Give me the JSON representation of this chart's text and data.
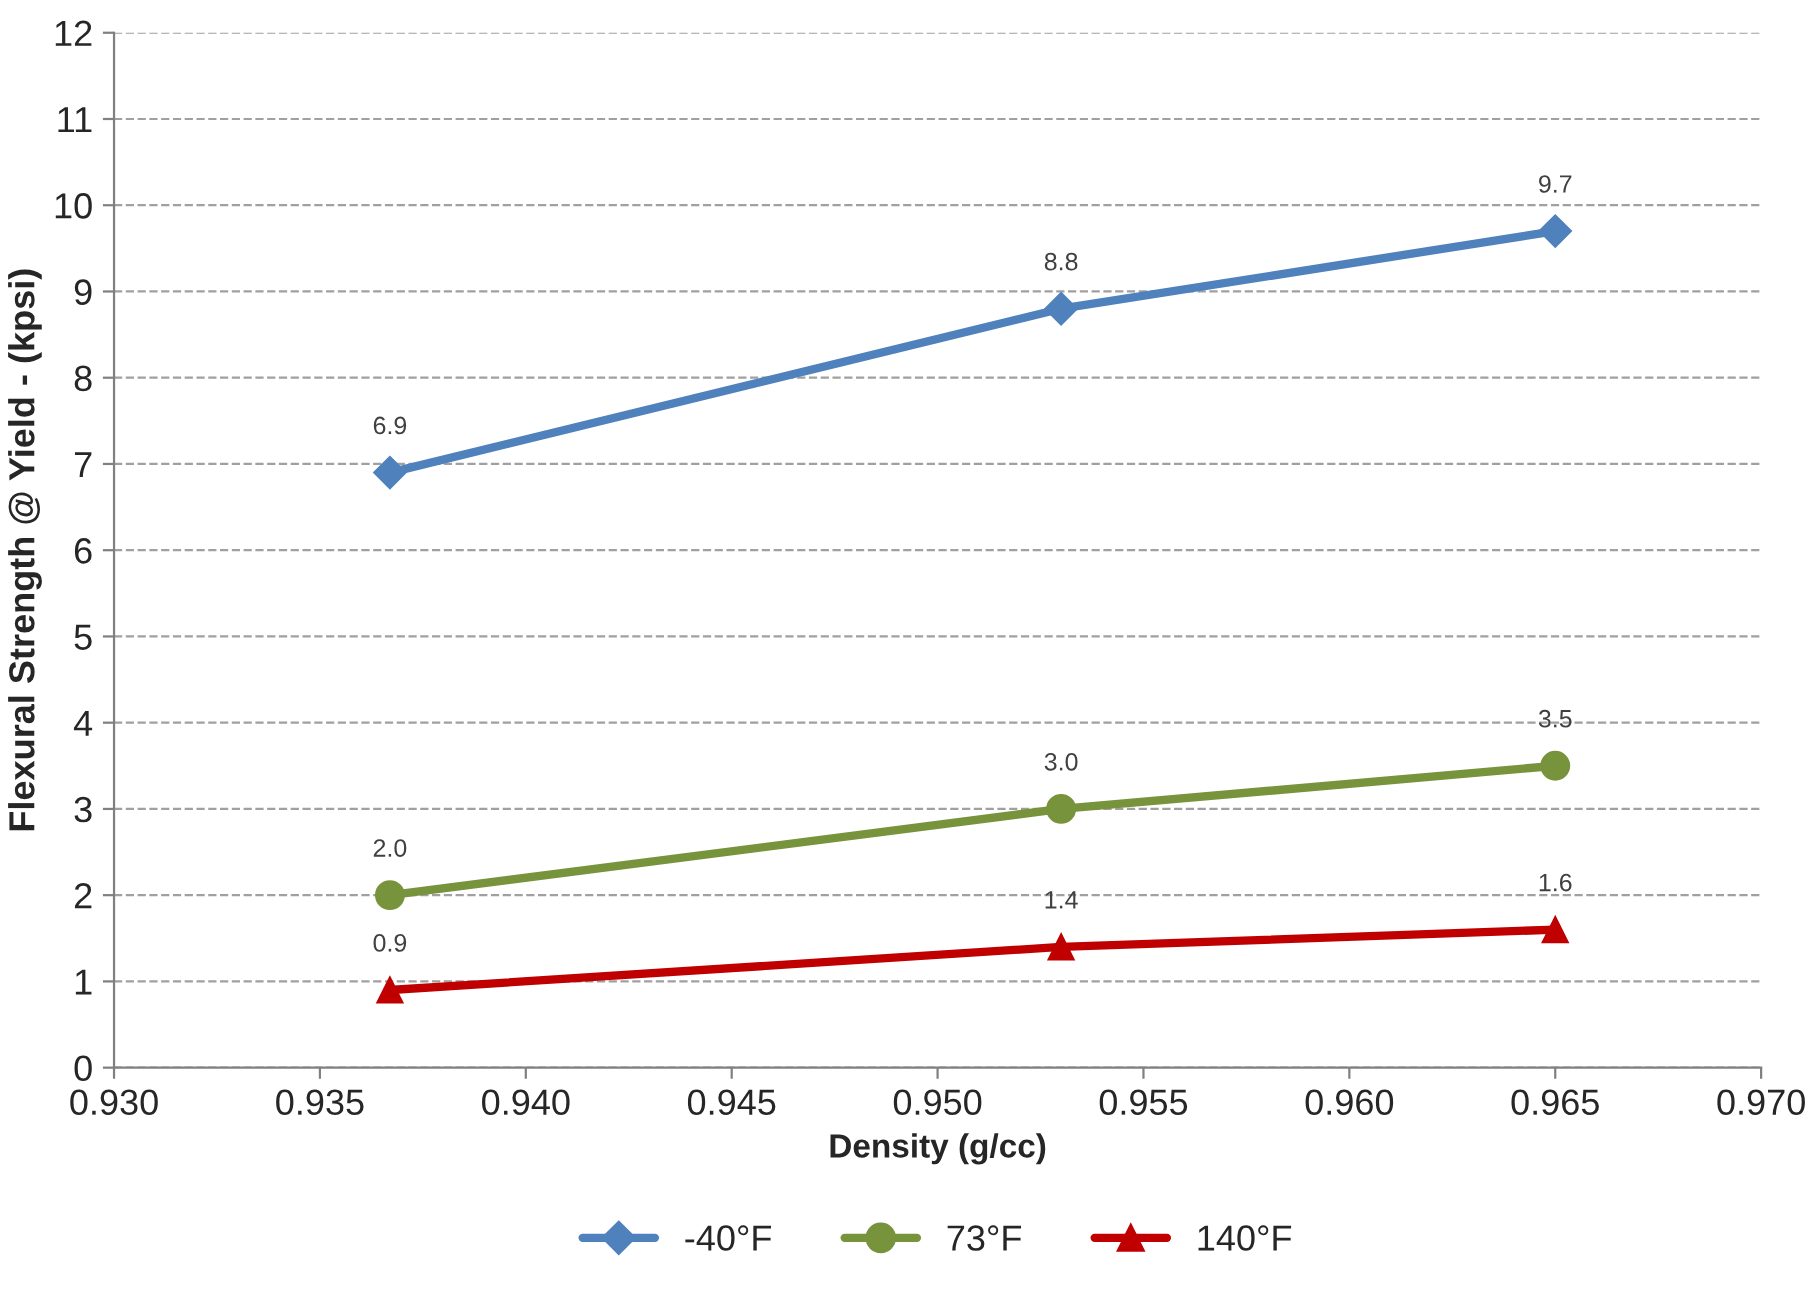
{
  "chart_data": {
    "type": "line",
    "xlabel": "Density (g/cc)",
    "ylabel": "Flexural Strength @ Yield - (kpsi)",
    "x": [
      0.9367,
      0.953,
      0.965
    ],
    "series": [
      {
        "name": "-40°F",
        "color": "#4f81bd",
        "marker": "diamond",
        "values": [
          6.9,
          8.8,
          9.7
        ],
        "value_labels": [
          "6.9",
          "8.8",
          "9.7"
        ]
      },
      {
        "name": "73°F",
        "color": "#77933c",
        "marker": "circle",
        "values": [
          2.0,
          3.0,
          3.5
        ],
        "value_labels": [
          "2.0",
          "3.0",
          "3.5"
        ]
      },
      {
        "name": "140°F",
        "color": "#c00000",
        "marker": "triangle",
        "values": [
          0.9,
          1.4,
          1.6
        ],
        "value_labels": [
          "0.9",
          "1.4",
          "1.6"
        ]
      }
    ],
    "xlim": [
      0.93,
      0.97
    ],
    "xticks": [
      {
        "value": 0.93,
        "label": "0.930"
      },
      {
        "value": 0.935,
        "label": "0.935"
      },
      {
        "value": 0.94,
        "label": "0.940"
      },
      {
        "value": 0.945,
        "label": "0.945"
      },
      {
        "value": 0.95,
        "label": "0.950"
      },
      {
        "value": 0.955,
        "label": "0.955"
      },
      {
        "value": 0.96,
        "label": "0.960"
      },
      {
        "value": 0.965,
        "label": "0.965"
      },
      {
        "value": 0.97,
        "label": "0.970"
      }
    ],
    "ylim": [
      0,
      12
    ],
    "yticks": [
      0,
      1,
      2,
      3,
      4,
      5,
      6,
      7,
      8,
      9,
      10,
      11,
      12
    ],
    "grid": "y",
    "legend": "bottom",
    "line_style": "solid"
  }
}
